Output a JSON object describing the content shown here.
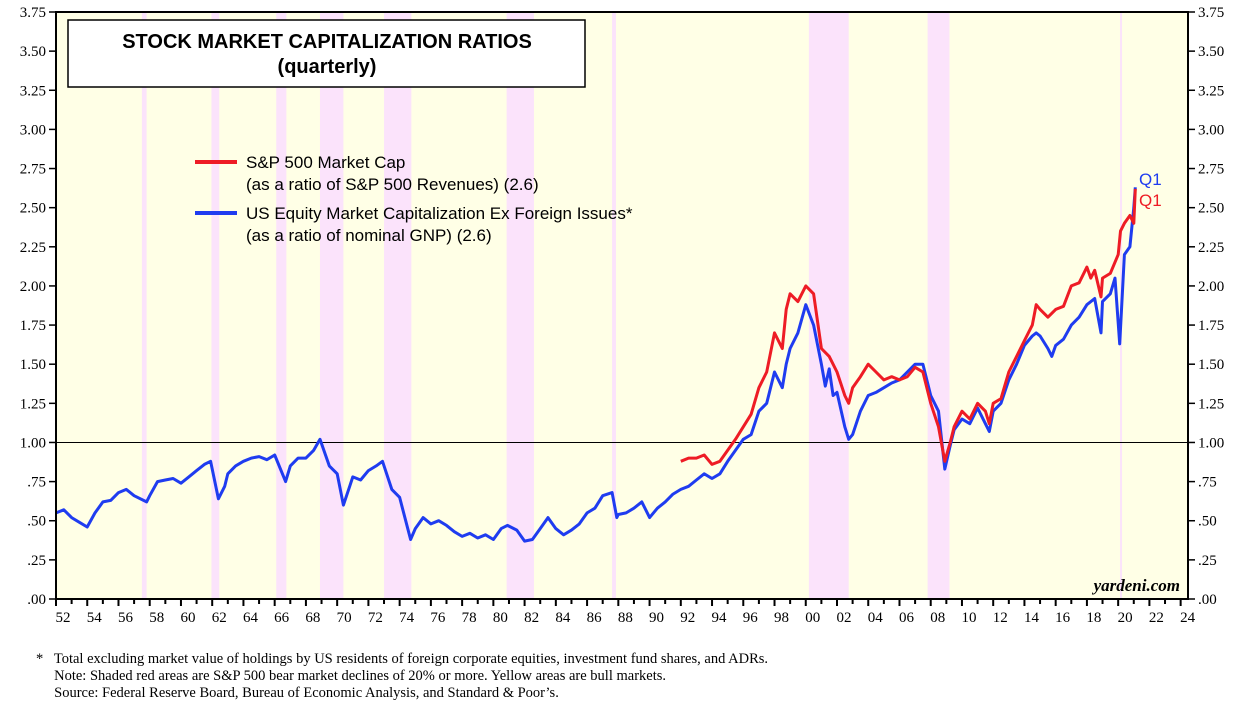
{
  "chart_data": {
    "type": "line",
    "title": "STOCK MARKET CAPITALIZATION RATIOS",
    "subtitle": "(quarterly)",
    "xlabel": "",
    "ylabel": "",
    "xlim": [
      1952,
      2024
    ],
    "ylim": [
      0,
      3.75
    ],
    "x_tick_labels": [
      "52",
      "54",
      "56",
      "58",
      "60",
      "62",
      "64",
      "66",
      "68",
      "70",
      "72",
      "74",
      "76",
      "78",
      "80",
      "82",
      "84",
      "86",
      "88",
      "90",
      "92",
      "94",
      "96",
      "98",
      "00",
      "02",
      "04",
      "06",
      "08",
      "10",
      "12",
      "14",
      "16",
      "18",
      "20",
      "22",
      "24"
    ],
    "y_tick_labels_left": [
      ".00",
      ".25",
      ".50",
      ".75",
      "1.00",
      "1.25",
      "1.50",
      "1.75",
      "2.00",
      "2.25",
      "2.50",
      "2.75",
      "3.00",
      "3.25",
      "3.50",
      "3.75"
    ],
    "y_tick_labels_right": [
      ".00",
      ".25",
      ".50",
      ".75",
      "1.00",
      "1.25",
      "1.50",
      "1.75",
      "2.00",
      "2.25",
      "2.50",
      "2.75",
      "3.00",
      "3.25",
      "3.50",
      "3.75"
    ],
    "reference_line": 1.0,
    "grid": false,
    "legend_placement": "upper-left",
    "background_color": "#ffffe6",
    "bear_market_color": "#fbe3fb",
    "bear_markets": [
      [
        1957.5,
        1957.8
      ],
      [
        1961.95,
        1962.45
      ],
      [
        1966.1,
        1966.75
      ],
      [
        1968.9,
        1970.4
      ],
      [
        1973.0,
        1974.75
      ],
      [
        1980.85,
        1982.6
      ],
      [
        1987.6,
        1987.85
      ],
      [
        2000.2,
        2002.75
      ],
      [
        2007.8,
        2009.2
      ],
      [
        2020.12,
        2020.22
      ]
    ],
    "series": [
      {
        "name": "S&P 500 Market Cap",
        "name_line2": "(as a ratio of S&P 500 Revenues) (2.6)",
        "color": "#ee1c25",
        "x": [
          1992,
          1992.5,
          1993,
          1993.5,
          1994,
          1994.5,
          1995,
          1995.5,
          1996,
          1996.5,
          1997,
          1997.5,
          1998,
          1998.5,
          1998.75,
          1999,
          1999.5,
          2000,
          2000.5,
          2001,
          2001.5,
          2002,
          2002.5,
          2002.75,
          2003,
          2003.5,
          2004,
          2004.5,
          2005,
          2005.5,
          2006,
          2006.5,
          2007,
          2007.5,
          2008,
          2008.5,
          2008.9,
          2009.25,
          2009.5,
          2010,
          2010.5,
          2011,
          2011.5,
          2011.75,
          2012,
          2012.5,
          2013,
          2013.5,
          2014,
          2014.5,
          2014.75,
          2015,
          2015.5,
          2016,
          2016.5,
          2017,
          2017.5,
          2018,
          2018.25,
          2018.5,
          2018.9,
          2019,
          2019.5,
          2020,
          2020.15,
          2020.4,
          2020.75,
          2021.0,
          2021.1
        ],
        "values": [
          0.88,
          0.9,
          0.9,
          0.92,
          0.86,
          0.88,
          0.95,
          1.02,
          1.1,
          1.18,
          1.35,
          1.45,
          1.7,
          1.6,
          1.85,
          1.95,
          1.9,
          2.0,
          1.95,
          1.6,
          1.55,
          1.45,
          1.3,
          1.25,
          1.35,
          1.42,
          1.5,
          1.45,
          1.4,
          1.42,
          1.4,
          1.42,
          1.48,
          1.45,
          1.25,
          1.1,
          0.88,
          1.0,
          1.1,
          1.2,
          1.15,
          1.25,
          1.2,
          1.12,
          1.25,
          1.28,
          1.45,
          1.55,
          1.65,
          1.75,
          1.88,
          1.85,
          1.8,
          1.85,
          1.87,
          2.0,
          2.02,
          2.12,
          2.05,
          2.1,
          1.93,
          2.05,
          2.08,
          2.2,
          2.35,
          2.4,
          2.45,
          2.4,
          2.62
        ]
      },
      {
        "name": "US Equity Market Capitalization Ex Foreign Issues*",
        "name_line2": "(as a ratio of nominal GNP) (2.6)",
        "color": "#1f3cf0",
        "x": [
          1952,
          1952.5,
          1953,
          1953.5,
          1954,
          1954.5,
          1955,
          1955.5,
          1956,
          1956.5,
          1957,
          1957.8,
          1958,
          1958.5,
          1959,
          1959.5,
          1960,
          1960.5,
          1961,
          1961.5,
          1961.9,
          1962.4,
          1962.8,
          1963,
          1963.5,
          1964,
          1964.5,
          1965,
          1965.5,
          1966,
          1966.7,
          1967,
          1967.5,
          1968,
          1968.5,
          1968.9,
          1969.5,
          1970,
          1970.4,
          1970.8,
          1971,
          1971.5,
          1972,
          1972.5,
          1972.9,
          1973.5,
          1974,
          1974.7,
          1975,
          1975.5,
          1976,
          1976.5,
          1977,
          1977.5,
          1978,
          1978.5,
          1979,
          1979.5,
          1980,
          1980.5,
          1980.9,
          1981.5,
          1982,
          1982.5,
          1983,
          1983.5,
          1984,
          1984.5,
          1985,
          1985.5,
          1986,
          1986.5,
          1987,
          1987.6,
          1987.9,
          1988,
          1988.5,
          1989,
          1989.5,
          1990,
          1990.5,
          1991,
          1991.5,
          1992,
          1992.5,
          1993,
          1993.5,
          1994,
          1994.5,
          1995,
          1995.5,
          1996,
          1996.5,
          1997,
          1997.5,
          1998,
          1998.5,
          1998.75,
          1999,
          1999.5,
          2000,
          2000.5,
          2001,
          2001.25,
          2001.5,
          2001.75,
          2002,
          2002.5,
          2002.75,
          2003,
          2003.5,
          2004,
          2004.5,
          2005,
          2005.5,
          2006,
          2006.5,
          2007,
          2007.5,
          2008,
          2008.5,
          2008.9,
          2009.25,
          2009.5,
          2010,
          2010.5,
          2011,
          2011.5,
          2011.75,
          2012,
          2012.5,
          2013,
          2013.5,
          2014,
          2014.5,
          2014.75,
          2015,
          2015.5,
          2015.75,
          2016,
          2016.5,
          2017,
          2017.5,
          2018,
          2018.5,
          2018.9,
          2019,
          2019.5,
          2019.8,
          2020.1,
          2020.4,
          2020.75,
          2021.0,
          2021.1
        ],
        "values": [
          0.55,
          0.57,
          0.52,
          0.49,
          0.46,
          0.55,
          0.62,
          0.63,
          0.68,
          0.7,
          0.66,
          0.62,
          0.66,
          0.75,
          0.76,
          0.77,
          0.74,
          0.78,
          0.82,
          0.86,
          0.88,
          0.64,
          0.72,
          0.8,
          0.85,
          0.88,
          0.9,
          0.91,
          0.89,
          0.92,
          0.75,
          0.85,
          0.9,
          0.9,
          0.95,
          1.02,
          0.85,
          0.8,
          0.6,
          0.72,
          0.78,
          0.76,
          0.82,
          0.85,
          0.88,
          0.7,
          0.65,
          0.38,
          0.45,
          0.52,
          0.48,
          0.5,
          0.47,
          0.43,
          0.4,
          0.42,
          0.39,
          0.41,
          0.38,
          0.45,
          0.47,
          0.44,
          0.37,
          0.38,
          0.45,
          0.52,
          0.45,
          0.41,
          0.44,
          0.48,
          0.55,
          0.58,
          0.66,
          0.68,
          0.52,
          0.54,
          0.55,
          0.58,
          0.62,
          0.52,
          0.58,
          0.62,
          0.67,
          0.7,
          0.72,
          0.76,
          0.8,
          0.77,
          0.8,
          0.88,
          0.95,
          1.02,
          1.05,
          1.2,
          1.25,
          1.45,
          1.35,
          1.5,
          1.6,
          1.7,
          1.88,
          1.75,
          1.5,
          1.36,
          1.47,
          1.3,
          1.32,
          1.1,
          1.02,
          1.05,
          1.2,
          1.3,
          1.32,
          1.35,
          1.38,
          1.4,
          1.45,
          1.5,
          1.5,
          1.3,
          1.2,
          0.83,
          0.98,
          1.08,
          1.15,
          1.12,
          1.22,
          1.12,
          1.07,
          1.2,
          1.25,
          1.4,
          1.5,
          1.62,
          1.68,
          1.7,
          1.68,
          1.6,
          1.55,
          1.62,
          1.66,
          1.75,
          1.8,
          1.88,
          1.92,
          1.7,
          1.9,
          1.95,
          2.05,
          1.63,
          2.2,
          2.25,
          2.5,
          2.63
        ]
      }
    ],
    "end_label": "Q1",
    "watermark": "yardeni.com"
  },
  "notes": {
    "line1": "*   Total excluding market value of holdings by US residents of foreign corporate equities, investment fund shares, and ADRs.",
    "line2": "     Note: Shaded red areas are S&P 500 bear market declines of 20% or more. Yellow areas are bull markets.",
    "line3": "     Source: Federal Reserve Board, Bureau of Economic Analysis, and Standard & Poor’s."
  }
}
